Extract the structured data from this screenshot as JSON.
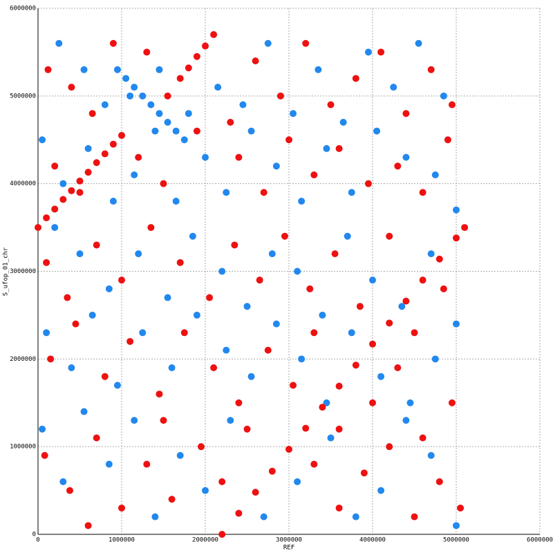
{
  "chart_data": {
    "type": "scatter",
    "xlabel": "REF",
    "ylabel": "S_ufop_01_chr",
    "xlim": [
      0,
      6000000
    ],
    "ylim": [
      0,
      6000000
    ],
    "xticks": [
      0,
      1000000,
      2000000,
      3000000,
      4000000,
      5000000,
      6000000
    ],
    "yticks": [
      0,
      1000000,
      2000000,
      3000000,
      4000000,
      5000000,
      6000000
    ],
    "grid": true,
    "series": [
      {
        "color": "#ee1111",
        "x": [
          120000,
          400000,
          650000,
          900000,
          1300000,
          1550000,
          2300000,
          2600000,
          2900000,
          3200000,
          3500000,
          3800000,
          4100000,
          4400000,
          4700000,
          4950000,
          200000,
          500000,
          1200000,
          1500000,
          1900000,
          2400000,
          2700000,
          3000000,
          3300000,
          3600000,
          3950000,
          4300000,
          4600000,
          4900000,
          100000,
          350000,
          700000,
          1000000,
          1350000,
          1700000,
          2050000,
          2350000,
          2650000,
          2950000,
          3250000,
          3550000,
          3850000,
          4200000,
          4500000,
          4850000,
          150000,
          450000,
          800000,
          1100000,
          1450000,
          1750000,
          2100000,
          2400000,
          2750000,
          3050000,
          3300000,
          3600000,
          4000000,
          4300000,
          4600000,
          4950000,
          80000,
          380000,
          700000,
          1000000,
          1300000,
          1600000,
          1950000,
          2200000,
          2500000,
          3300000,
          3600000,
          3900000,
          4200000,
          4500000,
          4800000,
          5050000,
          600000,
          1500000
        ],
        "values": [
          5300000,
          5100000,
          4800000,
          5600000,
          5500000,
          5000000,
          4700000,
          5400000,
          5000000,
          5600000,
          4900000,
          5200000,
          5500000,
          4800000,
          5300000,
          4900000,
          4200000,
          3900000,
          4300000,
          4000000,
          4600000,
          4300000,
          3900000,
          4500000,
          4100000,
          4400000,
          4000000,
          4200000,
          3900000,
          4500000,
          3100000,
          2700000,
          3300000,
          2900000,
          3500000,
          3100000,
          2700000,
          3300000,
          2900000,
          3400000,
          2800000,
          3200000,
          2600000,
          3400000,
          2300000,
          2800000,
          2000000,
          2400000,
          1800000,
          2200000,
          1600000,
          2300000,
          1900000,
          1500000,
          2100000,
          1700000,
          2300000,
          1200000,
          1500000,
          1900000,
          1100000,
          1500000,
          900000,
          500000,
          1100000,
          300000,
          800000,
          400000,
          1000000,
          600000,
          1200000,
          800000,
          300000,
          700000,
          1000000,
          200000,
          600000,
          300000,
          100000,
          1300000
        ]
      },
      {
        "color": "#2288ee",
        "x": [
          250000,
          550000,
          800000,
          1100000,
          1450000,
          1800000,
          2150000,
          2450000,
          2750000,
          3050000,
          3350000,
          3650000,
          3950000,
          4250000,
          4550000,
          4850000,
          50000,
          300000,
          600000,
          900000,
          1150000,
          1400000,
          1650000,
          2000000,
          2250000,
          2550000,
          2850000,
          3150000,
          3450000,
          3750000,
          4050000,
          4400000,
          4750000,
          5000000,
          200000,
          500000,
          850000,
          1200000,
          1550000,
          1850000,
          2200000,
          2500000,
          2800000,
          3100000,
          3400000,
          3700000,
          4000000,
          4350000,
          4700000,
          5000000,
          100000,
          400000,
          650000,
          950000,
          1250000,
          1600000,
          1900000,
          2250000,
          2550000,
          2850000,
          3150000,
          3450000,
          3750000,
          4100000,
          4450000,
          4750000,
          50000,
          300000,
          550000,
          850000,
          1150000,
          1400000,
          1700000,
          2000000,
          2300000,
          2700000,
          3100000,
          3500000,
          3800000,
          4100000,
          4400000,
          4700000,
          5000000
        ],
        "values": [
          5600000,
          5300000,
          4900000,
          5000000,
          5300000,
          4800000,
          5100000,
          4900000,
          5600000,
          4800000,
          5300000,
          4700000,
          5500000,
          5100000,
          5600000,
          5000000,
          4500000,
          4000000,
          4400000,
          3800000,
          4100000,
          4600000,
          3800000,
          4300000,
          3900000,
          4600000,
          4200000,
          3800000,
          4400000,
          3900000,
          4600000,
          4300000,
          4100000,
          3700000,
          3500000,
          3200000,
          2800000,
          3200000,
          2700000,
          3400000,
          3000000,
          2600000,
          3200000,
          3000000,
          2500000,
          3400000,
          2900000,
          2600000,
          3200000,
          2400000,
          2300000,
          1900000,
          2500000,
          1700000,
          2300000,
          1900000,
          2500000,
          2100000,
          1800000,
          2400000,
          2000000,
          1500000,
          2300000,
          1800000,
          1500000,
          2000000,
          1200000,
          600000,
          1400000,
          800000,
          1300000,
          200000,
          900000,
          500000,
          1300000,
          200000,
          600000,
          1100000,
          200000,
          500000,
          1300000,
          900000,
          100000
        ]
      },
      {
        "color": "#ee1111",
        "x": [
          2200000,
          2400000,
          2600000,
          2800000,
          3000000,
          3200000,
          3400000,
          3600000,
          3800000,
          4000000,
          4200000,
          4400000,
          4600000,
          4800000,
          5000000,
          5100000
        ],
        "values": [
          0,
          240000,
          480000,
          720000,
          970000,
          1210000,
          1450000,
          1690000,
          1930000,
          2170000,
          2410000,
          2660000,
          2900000,
          3140000,
          3380000,
          3500000
        ]
      },
      {
        "color": "#ee1111",
        "x": [
          0,
          100000,
          200000,
          300000,
          400000,
          500000,
          600000,
          700000,
          800000,
          900000,
          1000000
        ],
        "values": [
          3500000,
          3610000,
          3710000,
          3820000,
          3920000,
          4030000,
          4130000,
          4240000,
          4340000,
          4450000,
          4550000
        ]
      },
      {
        "color": "#ee1111",
        "x": [
          1700000,
          1800000,
          1900000,
          2000000,
          2100000
        ],
        "values": [
          5200000,
          5320000,
          5450000,
          5570000,
          5700000
        ]
      },
      {
        "color": "#2288ee",
        "x": [
          950000,
          1050000,
          1150000,
          1250000,
          1350000,
          1450000,
          1550000,
          1650000,
          1750000
        ],
        "values": [
          5300000,
          5200000,
          5100000,
          5000000,
          4900000,
          4800000,
          4700000,
          4600000,
          4500000
        ]
      }
    ]
  }
}
